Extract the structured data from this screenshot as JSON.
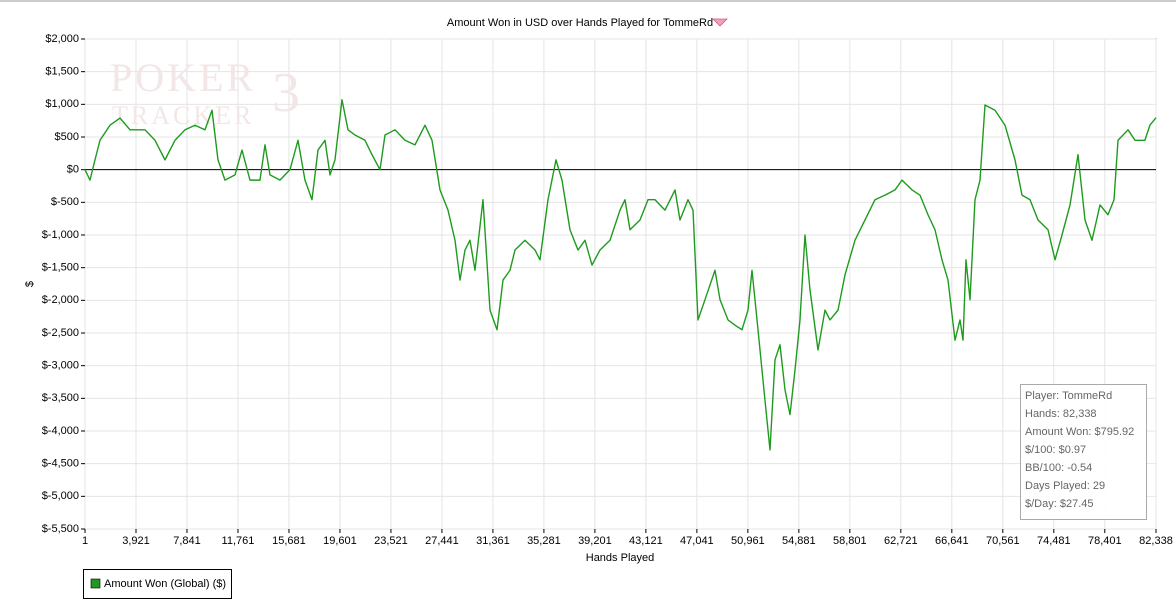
{
  "chart_data": {
    "type": "line",
    "title": "Amount Won in USD over Hands Played for TommeRd",
    "watermark": [
      "POKER",
      "TRACKER",
      "3"
    ],
    "x_label": "Hands Played",
    "y_label": "$",
    "xlim": [
      1,
      82338
    ],
    "ylim": [
      -5500,
      2000
    ],
    "grid": true,
    "xticks": [
      1,
      {
        "value": 3921,
        "label": "3,921"
      },
      {
        "value": 7841,
        "label": "7,841"
      },
      {
        "value": 11761,
        "label": "11,761"
      },
      {
        "value": 15681,
        "label": "15,681"
      },
      {
        "value": 19601,
        "label": "19,601"
      },
      {
        "value": 23521,
        "label": "23,521"
      },
      {
        "value": 27441,
        "label": "27,441"
      },
      {
        "value": 31361,
        "label": "31,361"
      },
      {
        "value": 35281,
        "label": "35,281"
      },
      {
        "value": 39201,
        "label": "39,201"
      },
      {
        "value": 43121,
        "label": "43,121"
      },
      {
        "value": 47041,
        "label": "47,041"
      },
      {
        "value": 50961,
        "label": "50,961"
      },
      {
        "value": 54881,
        "label": "54,881"
      },
      {
        "value": 58801,
        "label": "58,801"
      },
      {
        "value": 62721,
        "label": "62,721"
      },
      {
        "value": 66641,
        "label": "66,641"
      },
      {
        "value": 70561,
        "label": "70,561"
      },
      {
        "value": 74481,
        "label": "74,481"
      },
      {
        "value": 78401,
        "label": "78,401"
      },
      {
        "value": 82338,
        "label": "82,338"
      }
    ],
    "yticks": [
      {
        "value": 2000,
        "label": "$2,000"
      },
      {
        "value": 1500,
        "label": "$1,500"
      },
      {
        "value": 1000,
        "label": "$1,000"
      },
      {
        "value": 500,
        "label": "$500"
      },
      {
        "value": 0,
        "label": "$0"
      },
      {
        "value": -500,
        "label": "$-500"
      },
      {
        "value": -1000,
        "label": "$-1,000"
      },
      {
        "value": -1500,
        "label": "$-1,500"
      },
      {
        "value": -2000,
        "label": "$-2,000"
      },
      {
        "value": -2500,
        "label": "$-2,500"
      },
      {
        "value": -3000,
        "label": "$-3,000"
      },
      {
        "value": -3500,
        "label": "$-3,500"
      },
      {
        "value": -4000,
        "label": "$-4,000"
      },
      {
        "value": -4500,
        "label": "$-4,500"
      },
      {
        "value": -5000,
        "label": "$-5,000"
      },
      {
        "value": -5500,
        "label": "$-5,500"
      }
    ],
    "x": [
      1,
      384,
      769,
      1153,
      1922,
      2691,
      3459,
      4613,
      5382,
      6150,
      6919,
      7688,
      8457,
      9226,
      9764,
      10225,
      10763,
      11532,
      12070,
      12685,
      13454,
      13838,
      14223,
      14992,
      15760,
      16375,
      16913,
      17452,
      17913,
      18451,
      18836,
      19220,
      19758,
      20220,
      20758,
      21526,
      22064,
      22680,
      23064,
      23833,
      24602,
      25370,
      26139,
      26678,
      27293,
      27908,
      28446,
      28830,
      29215,
      29599,
      29983,
      30598,
      31137,
      31675,
      32136,
      32674,
      33058,
      33827,
      34596,
      34980,
      35595,
      36210,
      36671,
      37286,
      37901,
      38440,
      38978,
      39593,
      40362,
      41130,
      41515,
      41899,
      42668,
      43283,
      43822,
      44590,
      45359,
      45743,
      46358,
      46743,
      47127,
      47665,
      48434,
      48818,
      49434,
      49972,
      50510,
      50971,
      51279,
      51740,
      52278,
      52662,
      53047,
      53431,
      53816,
      54200,
      54584,
      54969,
      55353,
      55738,
      56353,
      56891,
      57276,
      57891,
      58429,
      59198,
      59966,
      60735,
      61504,
      62273,
      62811,
      63580,
      64195,
      64810,
      65348,
      65886,
      66347,
      66886,
      67270,
      67501,
      67731,
      68039,
      68423,
      68808,
      69192,
      69961,
      70730,
      71498,
      72037,
      72652,
      73267,
      74036,
      74574,
      75111,
      75728,
      76342,
      76880,
      77418,
      78034,
      78648,
      79110,
      79417,
      80186,
      80724,
      81485,
      81869,
      82338
    ],
    "series": [
      {
        "name": "Amount Won (Global) ($)",
        "color": "#1e9b1e",
        "values": [
          0,
          -160,
          150,
          450,
          680,
          790,
          610,
          610,
          450,
          150,
          450,
          610,
          680,
          610,
          910,
          150,
          -160,
          -80,
          300,
          -160,
          -160,
          380,
          -80,
          -160,
          0,
          450,
          -160,
          -460,
          300,
          450,
          -80,
          150,
          1070,
          610,
          530,
          450,
          230,
          0,
          530,
          610,
          450,
          380,
          680,
          450,
          -310,
          -620,
          -1080,
          -1690,
          -1230,
          -1080,
          -1540,
          -460,
          -2150,
          -2450,
          -1690,
          -1540,
          -1230,
          -1080,
          -1230,
          -1380,
          -460,
          150,
          -160,
          -920,
          -1230,
          -1080,
          -1460,
          -1230,
          -1080,
          -620,
          -460,
          -920,
          -770,
          -460,
          -460,
          -620,
          -310,
          -770,
          -460,
          -620,
          -2300,
          -1990,
          -1540,
          -1990,
          -2300,
          -2380,
          -2450,
          -2150,
          -1540,
          -2450,
          -3530,
          -4290,
          -2910,
          -2680,
          -3370,
          -3750,
          -3070,
          -2300,
          -1000,
          -1840,
          -2760,
          -2150,
          -2300,
          -2150,
          -1610,
          -1080,
          -770,
          -460,
          -390,
          -310,
          -160,
          -310,
          -390,
          -690,
          -920,
          -1380,
          -1690,
          -2610,
          -2300,
          -2610,
          -1380,
          -1990,
          -460,
          -160,
          990,
          910,
          680,
          150,
          -390,
          -460,
          -770,
          -920,
          -1380,
          -1000,
          -540,
          230,
          -770,
          -1080,
          -540,
          -690,
          -460,
          450,
          610,
          450,
          450,
          680,
          795.92
        ]
      }
    ],
    "info_lines": [
      "Player: TommeRd",
      "Hands: 82,338",
      "Amount Won: $795.92",
      "$/100: $0.97",
      "BB/100: -0.54",
      "Days Played: 29",
      "$/Day: $27.45"
    ]
  }
}
